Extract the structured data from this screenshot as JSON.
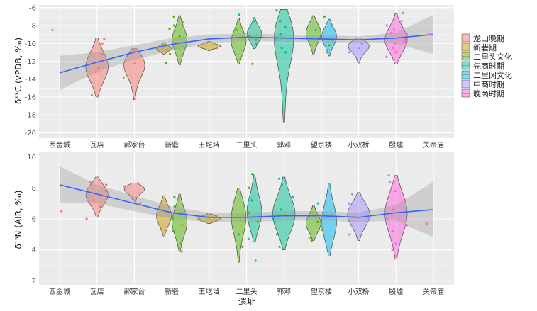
{
  "chart_data": [
    {
      "type": "violin",
      "ylabel": "δ¹³C (vPDB, ‰)",
      "ylim": [
        -20.6,
        -5.7
      ],
      "yticks": [
        -6,
        -8,
        -10,
        -12,
        -14,
        -16,
        -18,
        -20
      ],
      "ytick_labels": [
        "-6",
        "-8",
        "-10",
        "-12",
        "-14",
        "-16",
        "-18",
        "-20"
      ],
      "grid": true,
      "categories": [
        "西金城",
        "瓦店",
        "郝家台",
        "新砦",
        "王圪垱",
        "二里头",
        "郭邓",
        "望京楼",
        "小双桥",
        "殷墟",
        "关帝庙"
      ],
      "violins": [
        {
          "site": "瓦店",
          "period": "龙山晚期",
          "range": [
            -16.0,
            -9.4
          ],
          "median": -12.6
        },
        {
          "site": "郝家台",
          "period": "龙山晚期",
          "range": [
            -16.3,
            -10.6
          ],
          "median": -12.2
        },
        {
          "site": "新砦",
          "period": "新砦期",
          "range": [
            -11.2,
            -9.9
          ],
          "median": -10.6
        },
        {
          "site": "新砦",
          "period": "二里头文化",
          "range": [
            -12.4,
            -6.9
          ],
          "median": -9.6
        },
        {
          "site": "王圪垱",
          "period": "新砦期",
          "range": [
            -10.8,
            -9.8
          ],
          "median": -10.3
        },
        {
          "site": "二里头",
          "period": "二里头文化",
          "range": [
            -12.3,
            -7.2
          ],
          "median": -9.8
        },
        {
          "site": "二里头",
          "period": "先商时期",
          "range": [
            -10.6,
            -7.1
          ],
          "median": -9.0
        },
        {
          "site": "郭邓",
          "period": "先商时期",
          "range": [
            -18.8,
            -6.2
          ],
          "median": -8.6
        },
        {
          "site": "望京楼",
          "period": "二里头文化",
          "range": [
            -11.3,
            -6.9
          ],
          "median": -8.8
        },
        {
          "site": "望京楼",
          "period": "二里冈文化",
          "range": [
            -11.4,
            -7.3
          ],
          "median": -9.2
        },
        {
          "site": "小双桥",
          "period": "中商时期",
          "range": [
            -12.2,
            -9.4
          ],
          "median": -10.2
        },
        {
          "site": "殷墟",
          "period": "晚商时期",
          "range": [
            -12.3,
            -6.7
          ],
          "median": -9.6
        }
      ],
      "points": [
        {
          "x": "西金城",
          "y": -8.5
        },
        {
          "x": "瓦店",
          "y": -10.0
        },
        {
          "x": "瓦店",
          "y": -12.8
        },
        {
          "x": "瓦店",
          "y": -13.2
        },
        {
          "x": "瓦店",
          "y": -15.8
        },
        {
          "x": "瓦店",
          "y": -9.5
        },
        {
          "x": "瓦店",
          "y": -11.2
        },
        {
          "x": "郝家台",
          "y": -10.8
        },
        {
          "x": "郝家台",
          "y": -12.2
        },
        {
          "x": "郝家台",
          "y": -16.2
        },
        {
          "x": "郝家台",
          "y": -13.8
        },
        {
          "x": "新砦",
          "y": -7.0
        },
        {
          "x": "新砦",
          "y": -8.0
        },
        {
          "x": "新砦",
          "y": -8.4
        },
        {
          "x": "新砦",
          "y": -9.2
        },
        {
          "x": "新砦",
          "y": -10.8
        },
        {
          "x": "新砦",
          "y": -11.2
        },
        {
          "x": "新砦",
          "y": -12.2
        },
        {
          "x": "新砦",
          "y": -7.6
        },
        {
          "x": "王圪垱",
          "y": -10.0
        },
        {
          "x": "王圪垱",
          "y": -10.5
        },
        {
          "x": "二里头",
          "y": -7.5
        },
        {
          "x": "二里头",
          "y": -8.5
        },
        {
          "x": "二里头",
          "y": -9.2
        },
        {
          "x": "二里头",
          "y": -10.0
        },
        {
          "x": "二里头",
          "y": -11.8
        },
        {
          "x": "二里头",
          "y": -12.3
        },
        {
          "x": "二里头",
          "y": -6.8
        },
        {
          "x": "二里头",
          "y": -9.6
        },
        {
          "x": "郭邓",
          "y": -6.3
        },
        {
          "x": "郭邓",
          "y": -7.5
        },
        {
          "x": "郭邓",
          "y": -8.2
        },
        {
          "x": "郭邓",
          "y": -9.0
        },
        {
          "x": "郭邓",
          "y": -10.5
        },
        {
          "x": "郭邓",
          "y": -11.0
        },
        {
          "x": "郭邓",
          "y": -9.6
        },
        {
          "x": "望京楼",
          "y": -7.0
        },
        {
          "x": "望京楼",
          "y": -8.0
        },
        {
          "x": "望京楼",
          "y": -8.5
        },
        {
          "x": "望京楼",
          "y": -9.5
        },
        {
          "x": "望京楼",
          "y": -11.0
        },
        {
          "x": "望京楼",
          "y": -10.2
        },
        {
          "x": "小双桥",
          "y": -10.0
        },
        {
          "x": "小双桥",
          "y": -11.0
        },
        {
          "x": "小双桥",
          "y": -10.5
        },
        {
          "x": "殷墟",
          "y": -6.6
        },
        {
          "x": "殷墟",
          "y": -7.5
        },
        {
          "x": "殷墟",
          "y": -8.0
        },
        {
          "x": "殷墟",
          "y": -8.5
        },
        {
          "x": "殷墟",
          "y": -9.0
        },
        {
          "x": "殷墟",
          "y": -9.5
        },
        {
          "x": "殷墟",
          "y": -10.0
        },
        {
          "x": "殷墟",
          "y": -10.5
        },
        {
          "x": "殷墟",
          "y": -11.0
        },
        {
          "x": "殷墟",
          "y": -11.5
        },
        {
          "x": "殷墟",
          "y": -9.8
        },
        {
          "x": "殷墟",
          "y": -8.8
        },
        {
          "x": "关帝庙",
          "y": -9.0
        }
      ],
      "trend": {
        "x": [
          "西金城",
          "瓦店",
          "郝家台",
          "新砦",
          "王圪垱",
          "二里头",
          "郭邓",
          "望京楼",
          "小双桥",
          "殷墟",
          "关帝庙"
        ],
        "y": [
          -13.3,
          -12.1,
          -11.0,
          -10.1,
          -9.5,
          -9.3,
          -9.4,
          -9.5,
          -9.6,
          -9.4,
          -9.0
        ],
        "ci_low": [
          -15.2,
          -13.2,
          -11.8,
          -10.8,
          -10.0,
          -9.7,
          -9.8,
          -9.9,
          -10.0,
          -10.0,
          -11.2
        ],
        "ci_high": [
          -11.4,
          -11.0,
          -10.2,
          -9.4,
          -9.0,
          -8.9,
          -9.0,
          -9.1,
          -9.2,
          -8.8,
          -6.8
        ]
      }
    },
    {
      "type": "violin",
      "ylabel": "δ¹⁵N (AIR, ‰)",
      "xlabel": "遗址",
      "ylim": [
        1.7,
        10.3
      ],
      "yticks": [
        2,
        4,
        6,
        8,
        10
      ],
      "ytick_labels": [
        "2",
        "4",
        "6",
        "8",
        "10"
      ],
      "grid": true,
      "categories": [
        "西金城",
        "瓦店",
        "郝家台",
        "新砦",
        "王圪垱",
        "二里头",
        "郭邓",
        "望京楼",
        "小双桥",
        "殷墟",
        "关帝庙"
      ],
      "violins": [
        {
          "site": "瓦店",
          "period": "龙山晚期",
          "range": [
            6.1,
            8.7
          ],
          "median": 7.6
        },
        {
          "site": "郝家台",
          "period": "龙山晚期",
          "range": [
            7.0,
            8.3
          ],
          "median": 8.0
        },
        {
          "site": "新砦",
          "period": "新砦期",
          "range": [
            4.9,
            7.5
          ],
          "median": 6.2
        },
        {
          "site": "新砦",
          "period": "二里头文化",
          "range": [
            3.9,
            7.6
          ],
          "median": 5.8
        },
        {
          "site": "王圪垱",
          "period": "新砦期",
          "range": [
            5.7,
            6.4
          ],
          "median": 6.0
        },
        {
          "site": "二里头",
          "period": "二里头文化",
          "range": [
            3.2,
            8.0
          ],
          "median": 6.2
        },
        {
          "site": "二里头",
          "period": "先商时期",
          "range": [
            4.5,
            8.9
          ],
          "median": 6.4
        },
        {
          "site": "郭邓",
          "period": "先商时期",
          "range": [
            4.0,
            8.7
          ],
          "median": 6.3
        },
        {
          "site": "望京楼",
          "period": "二里头文化",
          "range": [
            4.6,
            6.9
          ],
          "median": 5.7
        },
        {
          "site": "望京楼",
          "period": "二里冈文化",
          "range": [
            3.6,
            8.3
          ],
          "median": 5.8
        },
        {
          "site": "小双桥",
          "period": "中商时期",
          "range": [
            4.6,
            7.7
          ],
          "median": 6.3
        },
        {
          "site": "殷墟",
          "period": "晚商时期",
          "range": [
            3.4,
            8.8
          ],
          "median": 6.4
        }
      ],
      "points": [
        {
          "x": "西金城",
          "y": 6.5
        },
        {
          "x": "瓦店",
          "y": 6.0
        },
        {
          "x": "瓦店",
          "y": 7.2
        },
        {
          "x": "瓦店",
          "y": 7.8
        },
        {
          "x": "瓦店",
          "y": 8.4
        },
        {
          "x": "瓦店",
          "y": 8.2
        },
        {
          "x": "瓦店",
          "y": 6.8
        },
        {
          "x": "郝家台",
          "y": 7.0
        },
        {
          "x": "郝家台",
          "y": 8.1
        },
        {
          "x": "郝家台",
          "y": 8.3
        },
        {
          "x": "新砦",
          "y": 3.9
        },
        {
          "x": "新砦",
          "y": 5.2
        },
        {
          "x": "新砦",
          "y": 6.0
        },
        {
          "x": "新砦",
          "y": 6.8
        },
        {
          "x": "新砦",
          "y": 7.4
        },
        {
          "x": "新砦",
          "y": 5.6
        },
        {
          "x": "新砦",
          "y": 4.4
        },
        {
          "x": "王圪垱",
          "y": 6.0
        },
        {
          "x": "王圪垱",
          "y": 6.2
        },
        {
          "x": "二里头",
          "y": 3.3
        },
        {
          "x": "二里头",
          "y": 4.2
        },
        {
          "x": "二里头",
          "y": 5.0
        },
        {
          "x": "二里头",
          "y": 5.8
        },
        {
          "x": "二里头",
          "y": 6.4
        },
        {
          "x": "二里头",
          "y": 7.2
        },
        {
          "x": "二里头",
          "y": 8.0
        },
        {
          "x": "二里头",
          "y": 8.9
        },
        {
          "x": "二里头",
          "y": 4.7
        },
        {
          "x": "郭邓",
          "y": 4.2
        },
        {
          "x": "郭邓",
          "y": 5.0
        },
        {
          "x": "郭邓",
          "y": 5.8
        },
        {
          "x": "郭邓",
          "y": 6.6
        },
        {
          "x": "郭邓",
          "y": 7.4
        },
        {
          "x": "郭邓",
          "y": 8.2
        },
        {
          "x": "郭邓",
          "y": 8.6
        },
        {
          "x": "郭邓",
          "y": 6.0
        },
        {
          "x": "望京楼",
          "y": 4.8
        },
        {
          "x": "望京楼",
          "y": 5.3
        },
        {
          "x": "望京楼",
          "y": 6.2
        },
        {
          "x": "望京楼",
          "y": 7.0
        },
        {
          "x": "望京楼",
          "y": 5.8
        },
        {
          "x": "望京楼",
          "y": 4.6
        },
        {
          "x": "小双桥",
          "y": 5.0
        },
        {
          "x": "小双桥",
          "y": 6.0
        },
        {
          "x": "小双桥",
          "y": 7.0
        },
        {
          "x": "小双桥",
          "y": 7.6
        },
        {
          "x": "殷墟",
          "y": 3.6
        },
        {
          "x": "殷墟",
          "y": 4.4
        },
        {
          "x": "殷墟",
          "y": 5.2
        },
        {
          "x": "殷墟",
          "y": 6.0
        },
        {
          "x": "殷墟",
          "y": 6.6
        },
        {
          "x": "殷墟",
          "y": 7.2
        },
        {
          "x": "殷墟",
          "y": 7.8
        },
        {
          "x": "殷墟",
          "y": 8.4
        },
        {
          "x": "殷墟",
          "y": 8.8
        },
        {
          "x": "殷墟",
          "y": 5.6
        },
        {
          "x": "殷墟",
          "y": 4.0
        },
        {
          "x": "关帝庙",
          "y": 5.7
        }
      ],
      "trend": {
        "x": [
          "西金城",
          "瓦店",
          "郝家台",
          "新砦",
          "王圪垱",
          "二里头",
          "郭邓",
          "望京楼",
          "小双桥",
          "殷墟",
          "关帝庙"
        ],
        "y": [
          8.2,
          7.6,
          7.0,
          6.4,
          6.1,
          6.1,
          6.2,
          6.2,
          6.1,
          6.4,
          6.6
        ],
        "ci_low": [
          7.0,
          7.0,
          6.5,
          6.0,
          5.8,
          5.8,
          5.9,
          5.9,
          5.8,
          5.9,
          4.8
        ],
        "ci_high": [
          9.4,
          8.2,
          7.5,
          6.8,
          6.4,
          6.4,
          6.5,
          6.5,
          6.4,
          6.9,
          8.4
        ]
      }
    }
  ],
  "legend": {
    "position": "right",
    "entries": [
      {
        "label": "龙山晚期",
        "color": "#f8766d"
      },
      {
        "label": "新砦期",
        "color": "#c49a00"
      },
      {
        "label": "二里头文化",
        "color": "#53b400"
      },
      {
        "label": "先商时期",
        "color": "#00c094"
      },
      {
        "label": "二里冈文化",
        "color": "#00b6eb"
      },
      {
        "label": "中商时期",
        "color": "#a58aff"
      },
      {
        "label": "晚商时期",
        "color": "#fb61d7"
      }
    ]
  },
  "colors": {
    "panel_background": "#ebebeb",
    "grid": "#ffffff",
    "trend_line": "#3366ff",
    "ci_band": "#999999"
  }
}
